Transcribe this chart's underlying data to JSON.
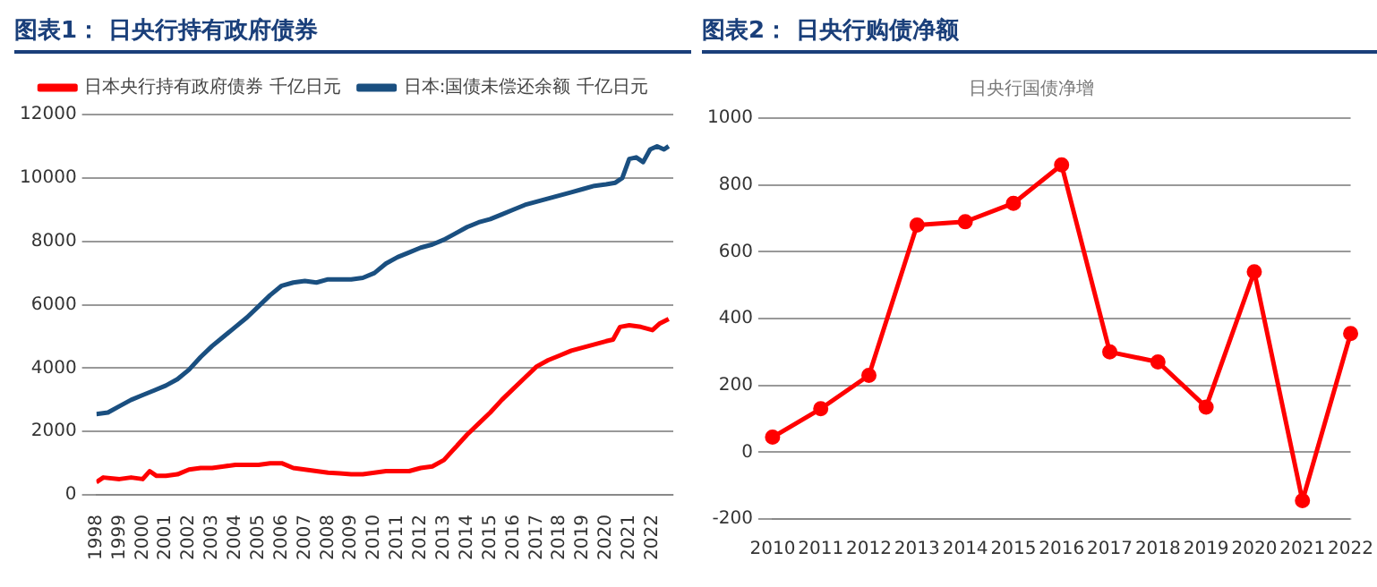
{
  "chart_data": [
    {
      "type": "line",
      "title": "图表1： 日央行持有政府债券",
      "legend": "top",
      "grid": "y",
      "marker": "none",
      "line_style": "solid",
      "xlim": [
        1998,
        2022.9
      ],
      "xticks": [
        1998,
        1999,
        2000,
        2001,
        2002,
        2003,
        2004,
        2005,
        2006,
        2007,
        2008,
        2009,
        2010,
        2011,
        2012,
        2013,
        2014,
        2015,
        2016,
        2017,
        2018,
        2019,
        2020,
        2021,
        2022
      ],
      "ylim": [
        0,
        12000
      ],
      "yticks": [
        0,
        2000,
        4000,
        6000,
        8000,
        10000,
        12000
      ],
      "series": [
        {
          "name": "日本央行持有政府债券 千亿日元",
          "color": "#ff0000",
          "x": [
            1998,
            1998.3,
            1999,
            1999.5,
            2000,
            2000.3,
            2000.6,
            2001,
            2001.5,
            2002,
            2002.5,
            2003,
            2003.5,
            2004,
            2004.5,
            2005,
            2005.5,
            2006,
            2006.5,
            2007,
            2007.5,
            2008,
            2008.5,
            2009,
            2009.5,
            2010,
            2010.5,
            2011,
            2011.5,
            2012,
            2012.5,
            2013,
            2013.5,
            2014,
            2014.5,
            2015,
            2015.5,
            2016,
            2016.5,
            2017,
            2017.5,
            2018,
            2018.5,
            2019,
            2019.5,
            2020,
            2020.3,
            2020.6,
            2021,
            2021.5,
            2022,
            2022.3,
            2022.7
          ],
          "values": [
            400,
            550,
            500,
            550,
            500,
            750,
            600,
            600,
            650,
            800,
            850,
            850,
            900,
            950,
            950,
            950,
            1000,
            1000,
            850,
            800,
            750,
            700,
            680,
            650,
            650,
            700,
            750,
            750,
            750,
            850,
            900,
            1100,
            1500,
            1900,
            2250,
            2600,
            3000,
            3350,
            3700,
            4050,
            4250,
            4400,
            4550,
            4650,
            4750,
            4850,
            4900,
            5300,
            5350,
            5300,
            5200,
            5400,
            5550
          ]
        },
        {
          "name": "日本:国债未偿还余额 千亿日元",
          "color": "#1a4f80",
          "x": [
            1998,
            1998.5,
            1999,
            1999.5,
            2000,
            2000.5,
            2001,
            2001.5,
            2002,
            2002.5,
            2003,
            2003.5,
            2004,
            2004.5,
            2005,
            2005.5,
            2006,
            2006.5,
            2007,
            2007.5,
            2008,
            2008.5,
            2009,
            2009.5,
            2010,
            2010.5,
            2011,
            2011.5,
            2012,
            2012.5,
            2013,
            2013.5,
            2014,
            2014.5,
            2015,
            2015.5,
            2016,
            2016.5,
            2017,
            2017.5,
            2018,
            2018.5,
            2019,
            2019.5,
            2020,
            2020.4,
            2020.7,
            2021,
            2021.3,
            2021.6,
            2021.9,
            2022.2,
            2022.5,
            2022.7
          ],
          "values": [
            2550,
            2600,
            2800,
            3000,
            3150,
            3300,
            3450,
            3650,
            3950,
            4350,
            4700,
            5000,
            5300,
            5600,
            5950,
            6300,
            6600,
            6700,
            6750,
            6700,
            6800,
            6800,
            6800,
            6850,
            7000,
            7300,
            7500,
            7650,
            7800,
            7900,
            8050,
            8250,
            8450,
            8600,
            8700,
            8850,
            9000,
            9150,
            9250,
            9350,
            9450,
            9550,
            9650,
            9750,
            9800,
            9850,
            10000,
            10600,
            10650,
            10500,
            10900,
            11000,
            10900,
            11000
          ]
        }
      ]
    },
    {
      "type": "line",
      "title": "图表2： 日央行购债净额",
      "subtitle": "日央行国债净增",
      "legend": false,
      "grid": "y",
      "marker": "circle",
      "line_style": "solid",
      "categories": [
        "2010",
        "2011",
        "2012",
        "2013",
        "2014",
        "2015",
        "2016",
        "2017",
        "2018",
        "2019",
        "2020",
        "2021",
        "2022"
      ],
      "ylim": [
        -200,
        1000
      ],
      "yticks": [
        -200,
        0,
        200,
        400,
        600,
        800,
        1000
      ],
      "series": [
        {
          "color": "#ff0000",
          "values": [
            45,
            130,
            230,
            680,
            690,
            745,
            860,
            300,
            270,
            135,
            540,
            -145,
            355
          ]
        }
      ]
    }
  ]
}
